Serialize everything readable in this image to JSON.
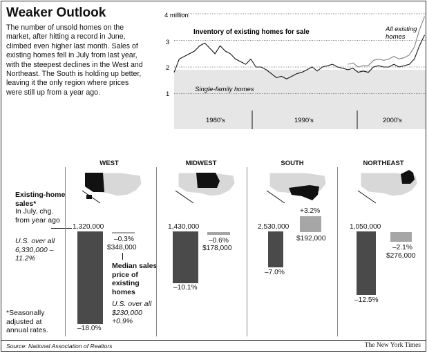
{
  "title": "Weaker Outlook",
  "intro": "The number of unsold homes on the market, after hitting a record in June, climbed even higher last month. Sales of existing homes fell in July from last year, with the steepest declines in the West and Northeast. The South is holding up better, leaving it the only region where prices were still up from a year ago.",
  "source": "Source: National Association of Realtors",
  "credit": "The New York Times",
  "colors": {
    "dark_bar": "#4a4a4a",
    "light_bar": "#a6a6a6",
    "chart_bg": "#e6e6e6",
    "line": "#111111",
    "line_all": "#8a8a8a"
  },
  "inventory_chart": {
    "title": "Inventory of existing homes for sale",
    "top_tick": "4 million",
    "ticks": [
      "3",
      "2",
      "1"
    ],
    "decades": [
      "1980's",
      "1990's",
      "2000's"
    ],
    "label_single": "Single-family homes",
    "label_all": "All existing homes"
  },
  "left_labels": {
    "sales_heading": "Existing-home sales*",
    "sales_sub": "In July, chg. from year ago",
    "us_sales": "U.S. over all 6,330,000 –11.2%",
    "footnote": "*Seasonally adjusted at annual rates."
  },
  "price_labels": {
    "heading": "Median sales price of existing homes",
    "us_price": "U.S. over all $230,000 +0.9%"
  },
  "regions": [
    {
      "name": "WEST",
      "sales": "1,320,000",
      "sales_chg": "–18.0%",
      "price": "$348,000",
      "price_chg": "–0.3%"
    },
    {
      "name": "MIDWEST",
      "sales": "1,430,000",
      "sales_chg": "–10.1%",
      "price": "$178,000",
      "price_chg": "–0.6%"
    },
    {
      "name": "SOUTH",
      "sales": "2,530,000",
      "sales_chg": "–7.0%",
      "price": "$192,000",
      "price_chg": "+3.2%"
    },
    {
      "name": "NORTHEAST",
      "sales": "1,050,000",
      "sales_chg": "–12.5%",
      "price": "$276,000",
      "price_chg": "–2.1%"
    }
  ],
  "chart_data": [
    {
      "type": "line",
      "title": "Inventory of existing homes for sale",
      "ylabel": "",
      "ylim": [
        0,
        4
      ],
      "unit": "million",
      "x_range": [
        1982,
        2006.6
      ],
      "series": [
        {
          "name": "Single-family homes",
          "x": [
            1982,
            1982.5,
            1983,
            1983.5,
            1984,
            1984.5,
            1985,
            1985.5,
            1986,
            1986.5,
            1987,
            1987.5,
            1988,
            1988.5,
            1989,
            1989.5,
            1990,
            1990.5,
            1991,
            1991.5,
            1992,
            1992.5,
            1993,
            1993.5,
            1994,
            1994.5,
            1995,
            1995.5,
            1996,
            1996.5,
            1997,
            1997.5,
            1998,
            1998.5,
            1999,
            1999.5,
            2000,
            2000.5,
            2001,
            2001.5,
            2002,
            2002.5,
            2003,
            2003.5,
            2004,
            2004.5,
            2005,
            2005.5,
            2006,
            2006.5
          ],
          "y": [
            1.8,
            2.3,
            2.4,
            2.5,
            2.6,
            2.8,
            2.9,
            2.7,
            2.5,
            2.8,
            2.6,
            2.5,
            2.3,
            2.2,
            2.1,
            2.3,
            2.0,
            2.0,
            1.9,
            1.75,
            1.6,
            1.65,
            1.55,
            1.65,
            1.75,
            1.8,
            1.9,
            2.0,
            1.85,
            2.0,
            2.05,
            2.1,
            2.0,
            1.95,
            1.9,
            1.95,
            1.8,
            1.85,
            1.8,
            2.0,
            2.05,
            2.0,
            2.0,
            2.1,
            2.0,
            2.05,
            2.1,
            2.3,
            2.8,
            3.2
          ]
        },
        {
          "name": "All existing homes",
          "x": [
            1999,
            1999.5,
            2000,
            2000.5,
            2001,
            2001.5,
            2002,
            2002.5,
            2003,
            2003.5,
            2004,
            2004.5,
            2005,
            2005.5,
            2006,
            2006.5
          ],
          "y": [
            2.1,
            2.15,
            2.0,
            2.05,
            2.05,
            2.25,
            2.3,
            2.25,
            2.3,
            2.4,
            2.3,
            2.35,
            2.45,
            2.75,
            3.4,
            3.9
          ]
        }
      ]
    },
    {
      "type": "bar",
      "title": "Existing-home sales",
      "ylabel": "In July, chg. from year ago",
      "categories": [
        "WEST",
        "MIDWEST",
        "SOUTH",
        "NORTHEAST"
      ],
      "values": [
        -18.0,
        -10.1,
        -7.0,
        -12.5
      ],
      "unit": "%",
      "sales": [
        1320000,
        1430000,
        2530000,
        1050000
      ],
      "us_overall": {
        "sales": 6330000,
        "change": -11.2
      }
    },
    {
      "type": "bar",
      "title": "Median sales price of existing homes",
      "categories": [
        "WEST",
        "MIDWEST",
        "SOUTH",
        "NORTHEAST"
      ],
      "values": [
        -0.3,
        -0.6,
        3.2,
        -2.1
      ],
      "unit": "%",
      "prices": [
        348000,
        178000,
        192000,
        276000
      ],
      "us_overall": {
        "price": 230000,
        "change": 0.9
      }
    }
  ]
}
